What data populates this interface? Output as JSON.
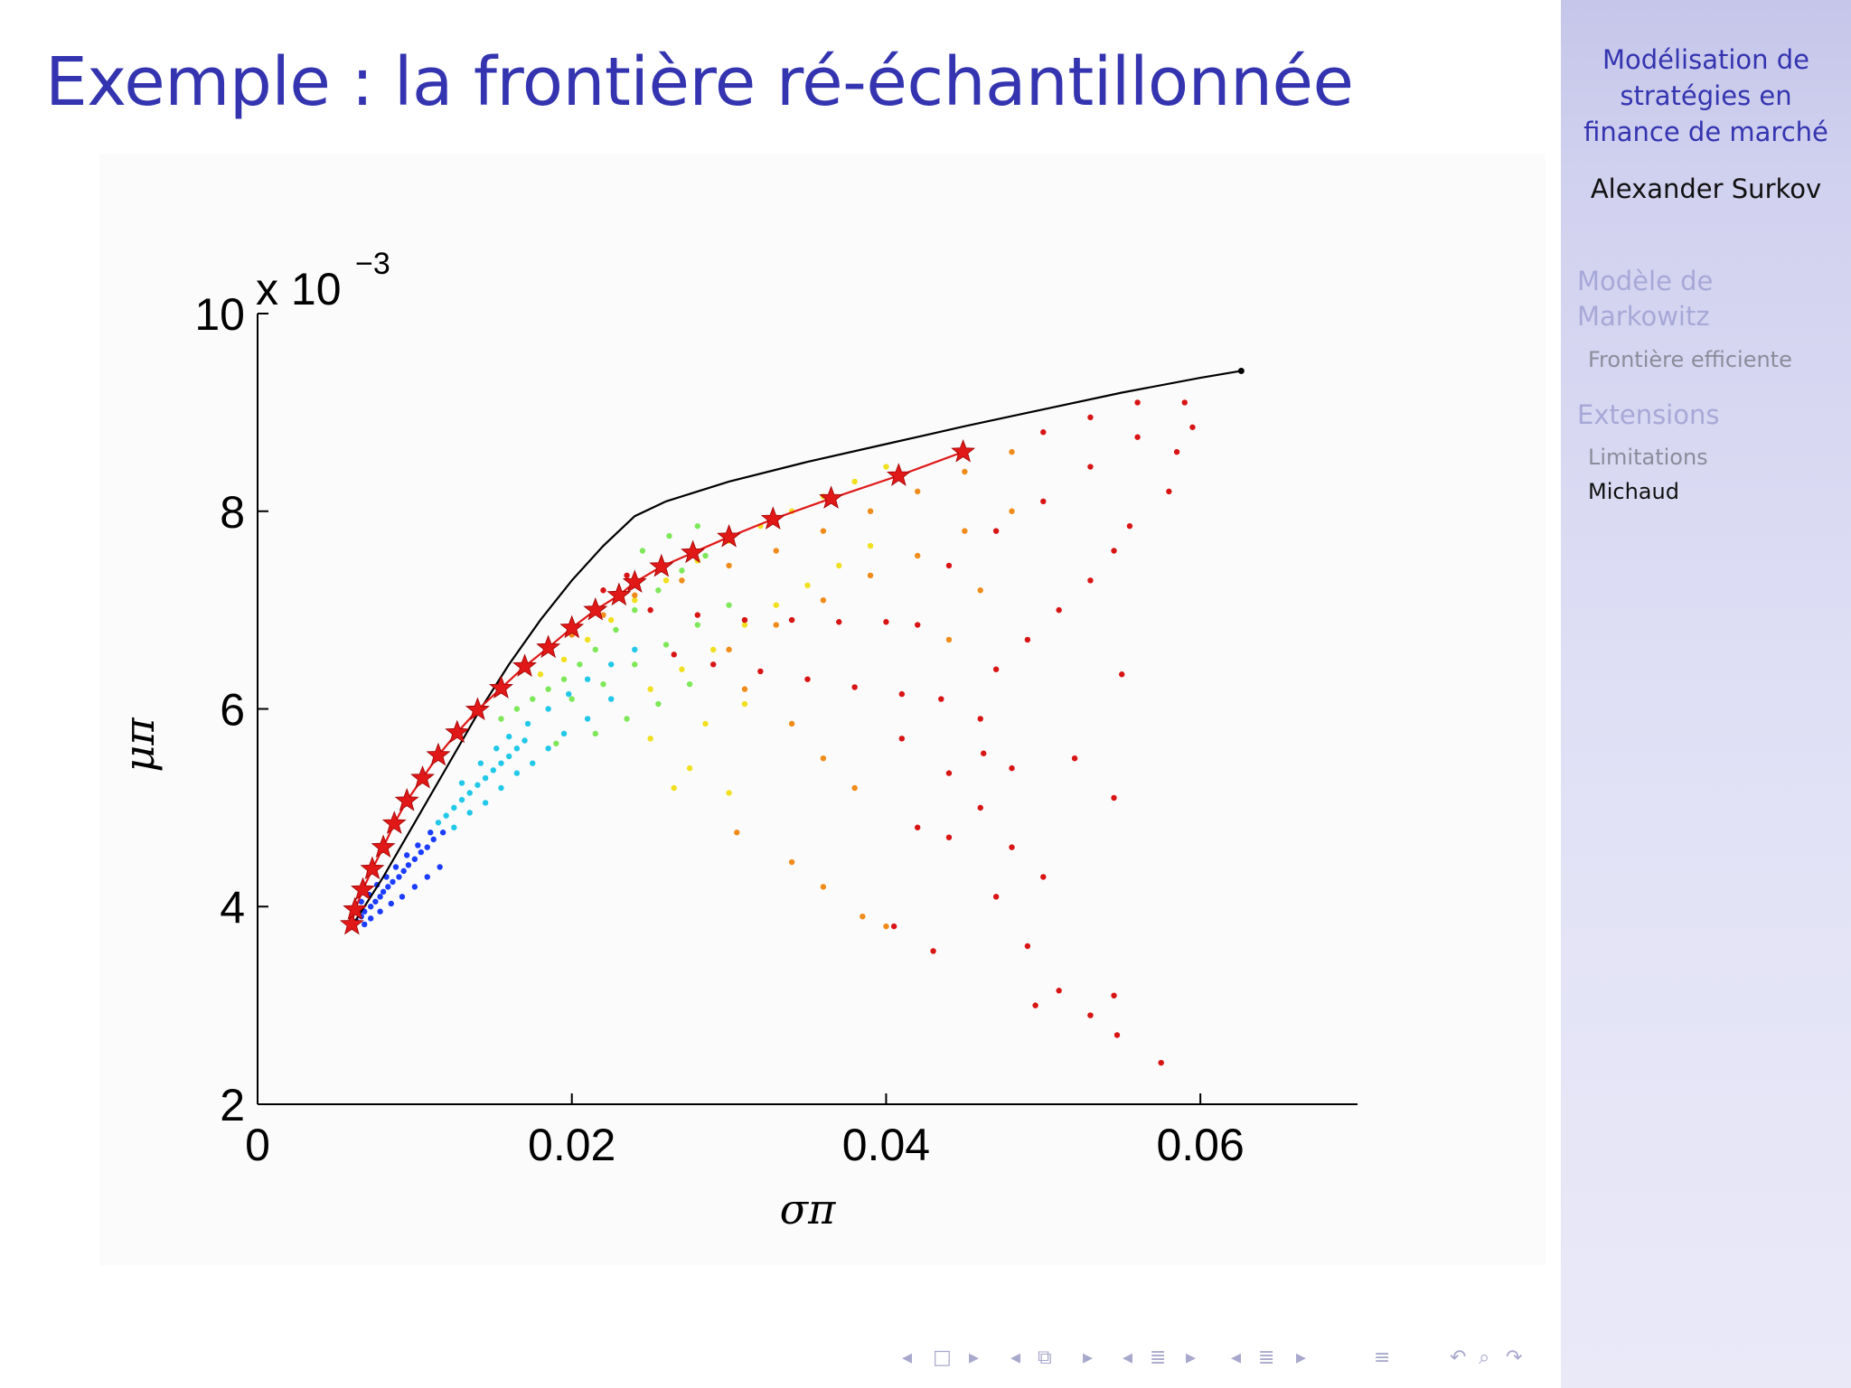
{
  "slide": {
    "title": "Exemple : la frontière ré-échantillonnée"
  },
  "sidebar": {
    "title_lines": [
      "Modélisation de",
      "stratégies en",
      "finance de marché"
    ],
    "author": "Alexander Surkov",
    "sections": [
      {
        "label_lines": [
          "Modèle de",
          "Markowitz"
        ],
        "subsections": [
          {
            "label": "Frontière efficiente",
            "active": false
          }
        ]
      },
      {
        "label_lines": [
          "Extensions"
        ],
        "subsections": [
          {
            "label": "Limitations",
            "active": false
          },
          {
            "label": "Michaud",
            "active": true
          }
        ]
      }
    ]
  },
  "nav": {
    "icons": [
      "arrow-left-icon",
      "frame-icon",
      "arrow-right-icon",
      "arrow-left-icon",
      "subsection-icon",
      "arrow-right-icon",
      "arrow-left-icon",
      "section-icon",
      "arrow-right-icon",
      "arrow-left-icon",
      "section-icon",
      "arrow-right-icon",
      "align-icon",
      "undo-icon",
      "search-icon",
      "redo-icon"
    ]
  },
  "chart_data": {
    "type": "scatter",
    "title": "",
    "xlabel": "σπ",
    "ylabel": "μπ",
    "y_multiplier": "x 10",
    "y_multiplier_exponent": "−3",
    "xlim": [
      0,
      0.07
    ],
    "ylim": [
      2,
      10
    ],
    "xticks": [
      0,
      0.02,
      0.04,
      0.06
    ],
    "xtick_labels": [
      "0",
      "0.02",
      "0.04",
      "0.06"
    ],
    "yticks": [
      2,
      4,
      6,
      8,
      10
    ],
    "ytick_labels": [
      "2",
      "4",
      "6",
      "8",
      "10"
    ],
    "grid": false,
    "colors": {
      "frontier": "#000000",
      "resampled": "#e01818",
      "stars": "#e01818"
    },
    "series": [
      {
        "kind": "line",
        "x": [
          0.006,
          0.008,
          0.01,
          0.012,
          0.014,
          0.016,
          0.018,
          0.02,
          0.022,
          0.024,
          0.026,
          0.03,
          0.035,
          0.04,
          0.045,
          0.05,
          0.055,
          0.06,
          0.0626
        ],
        "y": [
          3.8,
          4.3,
          4.85,
          5.4,
          5.95,
          6.45,
          6.9,
          7.3,
          7.65,
          7.95,
          8.1,
          8.3,
          8.5,
          8.68,
          8.86,
          9.03,
          9.2,
          9.35,
          9.42
        ]
      },
      {
        "kind": "line_with_stars",
        "x": [
          0.006,
          0.0062,
          0.0067,
          0.0073,
          0.008,
          0.0087,
          0.0095,
          0.0105,
          0.0115,
          0.0127,
          0.014,
          0.0155,
          0.017,
          0.0185,
          0.02,
          0.0215,
          0.023,
          0.024,
          0.0257,
          0.0277,
          0.03,
          0.0328,
          0.0365,
          0.0408,
          0.0449
        ],
        "y": [
          3.82,
          3.97,
          4.17,
          4.38,
          4.6,
          4.84,
          5.07,
          5.3,
          5.53,
          5.76,
          5.99,
          6.21,
          6.43,
          6.62,
          6.82,
          7.0,
          7.15,
          7.28,
          7.44,
          7.58,
          7.74,
          7.92,
          8.13,
          8.36,
          8.6
        ]
      }
    ],
    "point_clouds": [
      {
        "label": "blue",
        "color": "#1c3cff",
        "points": [
          [
            0.006,
            3.8
          ],
          [
            0.0063,
            3.85
          ],
          [
            0.0066,
            3.9
          ],
          [
            0.0068,
            3.95
          ],
          [
            0.0072,
            4.0
          ],
          [
            0.0075,
            4.05
          ],
          [
            0.0078,
            4.1
          ],
          [
            0.008,
            4.15
          ],
          [
            0.0083,
            4.2
          ],
          [
            0.0086,
            4.25
          ],
          [
            0.009,
            4.3
          ],
          [
            0.0093,
            4.36
          ],
          [
            0.0096,
            4.42
          ],
          [
            0.01,
            4.48
          ],
          [
            0.0104,
            4.55
          ],
          [
            0.0108,
            4.6
          ],
          [
            0.0112,
            4.68
          ],
          [
            0.0118,
            4.75
          ],
          [
            0.0068,
            3.82
          ],
          [
            0.0072,
            3.88
          ],
          [
            0.0078,
            3.95
          ],
          [
            0.0085,
            4.03
          ],
          [
            0.0092,
            4.1
          ],
          [
            0.01,
            4.2
          ],
          [
            0.0108,
            4.3
          ],
          [
            0.0116,
            4.4
          ],
          [
            0.0066,
            4.05
          ],
          [
            0.0071,
            4.12
          ],
          [
            0.0076,
            4.22
          ],
          [
            0.0082,
            4.3
          ],
          [
            0.0088,
            4.4
          ],
          [
            0.0095,
            4.52
          ],
          [
            0.0102,
            4.62
          ],
          [
            0.011,
            4.75
          ]
        ]
      },
      {
        "label": "cyan",
        "color": "#22c8e8",
        "points": [
          [
            0.0115,
            4.85
          ],
          [
            0.012,
            4.92
          ],
          [
            0.0125,
            5.0
          ],
          [
            0.013,
            5.08
          ],
          [
            0.0135,
            5.15
          ],
          [
            0.014,
            5.23
          ],
          [
            0.0145,
            5.3
          ],
          [
            0.015,
            5.38
          ],
          [
            0.0155,
            5.45
          ],
          [
            0.016,
            5.52
          ],
          [
            0.0165,
            5.6
          ],
          [
            0.017,
            5.68
          ],
          [
            0.0125,
            4.8
          ],
          [
            0.0135,
            4.95
          ],
          [
            0.0145,
            5.05
          ],
          [
            0.0155,
            5.2
          ],
          [
            0.0165,
            5.35
          ],
          [
            0.0175,
            5.45
          ],
          [
            0.0185,
            5.6
          ],
          [
            0.0195,
            5.75
          ],
          [
            0.021,
            5.9
          ],
          [
            0.0225,
            6.1
          ],
          [
            0.013,
            5.25
          ],
          [
            0.0142,
            5.45
          ],
          [
            0.0152,
            5.6
          ],
          [
            0.016,
            5.72
          ],
          [
            0.0172,
            5.85
          ],
          [
            0.0185,
            6.0
          ],
          [
            0.0198,
            6.15
          ],
          [
            0.021,
            6.3
          ],
          [
            0.0225,
            6.45
          ],
          [
            0.024,
            6.6
          ]
        ]
      },
      {
        "label": "green",
        "color": "#7ee85a",
        "points": [
          [
            0.0155,
            5.9
          ],
          [
            0.0165,
            6.0
          ],
          [
            0.0175,
            6.1
          ],
          [
            0.0185,
            6.2
          ],
          [
            0.0195,
            6.3
          ],
          [
            0.0205,
            6.45
          ],
          [
            0.0215,
            6.6
          ],
          [
            0.0228,
            6.8
          ],
          [
            0.024,
            7.0
          ],
          [
            0.0255,
            7.2
          ],
          [
            0.027,
            7.4
          ],
          [
            0.0285,
            7.55
          ],
          [
            0.02,
            6.1
          ],
          [
            0.022,
            6.25
          ],
          [
            0.024,
            6.45
          ],
          [
            0.026,
            6.65
          ],
          [
            0.028,
            6.85
          ],
          [
            0.03,
            7.05
          ],
          [
            0.0245,
            7.6
          ],
          [
            0.0262,
            7.75
          ],
          [
            0.028,
            7.85
          ],
          [
            0.019,
            5.65
          ],
          [
            0.0215,
            5.75
          ],
          [
            0.0235,
            5.9
          ],
          [
            0.0255,
            6.05
          ],
          [
            0.0275,
            6.25
          ]
        ]
      },
      {
        "label": "yellow",
        "color": "#f0e020",
        "points": [
          [
            0.018,
            6.35
          ],
          [
            0.0195,
            6.5
          ],
          [
            0.021,
            6.7
          ],
          [
            0.0225,
            6.9
          ],
          [
            0.024,
            7.1
          ],
          [
            0.026,
            7.3
          ],
          [
            0.028,
            7.5
          ],
          [
            0.03,
            7.7
          ],
          [
            0.032,
            7.85
          ],
          [
            0.034,
            8.0
          ],
          [
            0.036,
            8.15
          ],
          [
            0.038,
            8.3
          ],
          [
            0.04,
            8.45
          ],
          [
            0.025,
            6.2
          ],
          [
            0.027,
            6.4
          ],
          [
            0.029,
            6.6
          ],
          [
            0.031,
            6.85
          ],
          [
            0.033,
            7.05
          ],
          [
            0.035,
            7.25
          ],
          [
            0.037,
            7.45
          ],
          [
            0.039,
            7.65
          ],
          [
            0.025,
            5.7
          ],
          [
            0.0275,
            5.4
          ],
          [
            0.03,
            5.15
          ],
          [
            0.0285,
            5.85
          ],
          [
            0.031,
            6.05
          ],
          [
            0.0265,
            5.2
          ]
        ]
      },
      {
        "label": "orange",
        "color": "#f08c1c",
        "points": [
          [
            0.02,
            6.75
          ],
          [
            0.022,
            6.95
          ],
          [
            0.024,
            7.15
          ],
          [
            0.027,
            7.3
          ],
          [
            0.03,
            7.45
          ],
          [
            0.033,
            7.6
          ],
          [
            0.036,
            7.8
          ],
          [
            0.039,
            8.0
          ],
          [
            0.042,
            8.2
          ],
          [
            0.045,
            8.4
          ],
          [
            0.048,
            8.6
          ],
          [
            0.03,
            6.6
          ],
          [
            0.033,
            6.85
          ],
          [
            0.036,
            7.1
          ],
          [
            0.039,
            7.35
          ],
          [
            0.042,
            7.55
          ],
          [
            0.045,
            7.8
          ],
          [
            0.048,
            8.0
          ],
          [
            0.031,
            6.2
          ],
          [
            0.034,
            5.85
          ],
          [
            0.036,
            5.5
          ],
          [
            0.038,
            5.2
          ],
          [
            0.0305,
            4.75
          ],
          [
            0.034,
            4.45
          ],
          [
            0.036,
            4.2
          ],
          [
            0.0385,
            3.9
          ],
          [
            0.04,
            3.8
          ],
          [
            0.044,
            6.7
          ],
          [
            0.046,
            7.2
          ]
        ]
      },
      {
        "label": "red",
        "color": "#d81414",
        "points": [
          [
            0.022,
            7.2
          ],
          [
            0.0235,
            7.35
          ],
          [
            0.025,
            7.0
          ],
          [
            0.028,
            6.95
          ],
          [
            0.031,
            6.9
          ],
          [
            0.034,
            6.9
          ],
          [
            0.037,
            6.88
          ],
          [
            0.04,
            6.88
          ],
          [
            0.042,
            6.85
          ],
          [
            0.0265,
            6.55
          ],
          [
            0.029,
            6.45
          ],
          [
            0.032,
            6.38
          ],
          [
            0.035,
            6.3
          ],
          [
            0.038,
            6.22
          ],
          [
            0.041,
            6.15
          ],
          [
            0.0435,
            6.1
          ],
          [
            0.044,
            7.45
          ],
          [
            0.047,
            7.8
          ],
          [
            0.05,
            8.1
          ],
          [
            0.053,
            8.45
          ],
          [
            0.056,
            8.75
          ],
          [
            0.059,
            9.1
          ],
          [
            0.05,
            8.8
          ],
          [
            0.053,
            8.95
          ],
          [
            0.056,
            9.1
          ],
          [
            0.041,
            5.7
          ],
          [
            0.044,
            5.35
          ],
          [
            0.046,
            5.0
          ],
          [
            0.048,
            4.6
          ],
          [
            0.05,
            4.3
          ],
          [
            0.047,
            4.1
          ],
          [
            0.049,
            3.6
          ],
          [
            0.051,
            3.15
          ],
          [
            0.053,
            2.9
          ],
          [
            0.0547,
            2.7
          ],
          [
            0.0575,
            2.42
          ],
          [
            0.0495,
            3.0
          ],
          [
            0.0545,
            3.1
          ],
          [
            0.052,
            5.5
          ],
          [
            0.0545,
            5.1
          ],
          [
            0.055,
            6.35
          ],
          [
            0.058,
            8.2
          ],
          [
            0.0585,
            8.6
          ],
          [
            0.0595,
            8.85
          ],
          [
            0.0626,
            9.42
          ],
          [
            0.0555,
            7.85
          ],
          [
            0.0545,
            7.6
          ],
          [
            0.053,
            7.3
          ],
          [
            0.051,
            7.0
          ],
          [
            0.049,
            6.7
          ],
          [
            0.047,
            6.4
          ],
          [
            0.046,
            5.9
          ],
          [
            0.0462,
            5.55
          ],
          [
            0.048,
            5.4
          ],
          [
            0.043,
            3.55
          ],
          [
            0.0405,
            3.8
          ],
          [
            0.042,
            4.8
          ],
          [
            0.044,
            4.7
          ]
        ]
      }
    ]
  }
}
